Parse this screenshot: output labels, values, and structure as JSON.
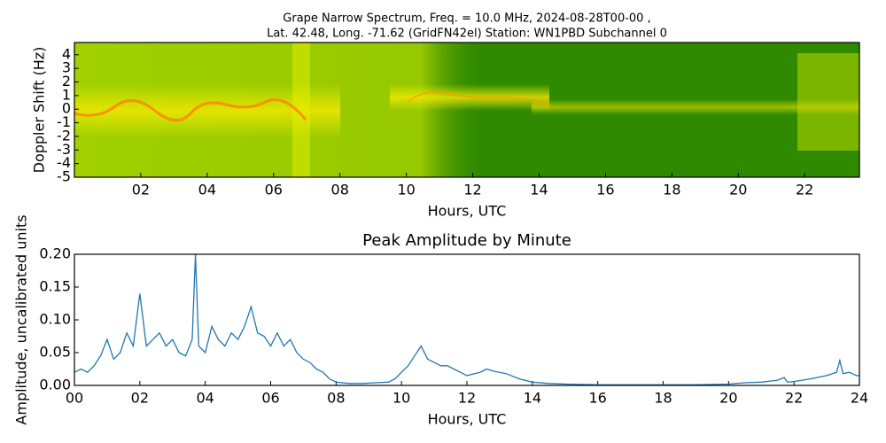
{
  "chart_data": [
    {
      "type": "spectrogram",
      "title": [
        "Grape Narrow Spectrum, Freq. = 10.0 MHz, 2024-08-28T00-00 ,",
        "Lat.  42.48, Long. -71.62 (GridFN42el) Station: WN1PBD Subchannel 0"
      ],
      "x_label": "Hours, UTC",
      "y_label": "Doppler Shift (Hz)",
      "xlim": [
        0,
        23.65
      ],
      "ylim": [
        -5,
        4.9
      ],
      "xticks": [
        {
          "value": 2,
          "label": "02"
        },
        {
          "value": 4,
          "label": "04"
        },
        {
          "value": 6,
          "label": "06"
        },
        {
          "value": 8,
          "label": "08"
        },
        {
          "value": 10,
          "label": "10"
        },
        {
          "value": 12,
          "label": "12"
        },
        {
          "value": 14,
          "label": "14"
        },
        {
          "value": 16,
          "label": "16"
        },
        {
          "value": 18,
          "label": "18"
        },
        {
          "value": 20,
          "label": "20"
        },
        {
          "value": 22,
          "label": "22"
        }
      ],
      "yticks": [
        4,
        3,
        2,
        1,
        0,
        -1,
        -2,
        -3,
        -4,
        -5
      ]
    },
    {
      "type": "line",
      "title": "Peak Amplitude by Minute",
      "x_label": "Hours, UTC",
      "y_label": "Amplitude, uncalibrated units",
      "color": "#1f77b4",
      "xlim": [
        0,
        24
      ],
      "ylim": [
        0,
        0.2
      ],
      "xticks": [
        {
          "value": 0,
          "label": "00"
        },
        {
          "value": 2,
          "label": "02"
        },
        {
          "value": 4,
          "label": "04"
        },
        {
          "value": 6,
          "label": "06"
        },
        {
          "value": 8,
          "label": "08"
        },
        {
          "value": 10,
          "label": "10"
        },
        {
          "value": 12,
          "label": "12"
        },
        {
          "value": 14,
          "label": "14"
        },
        {
          "value": 16,
          "label": "16"
        },
        {
          "value": 18,
          "label": "18"
        },
        {
          "value": 20,
          "label": "20"
        },
        {
          "value": 22,
          "label": "22"
        },
        {
          "value": 24,
          "label": "24"
        }
      ],
      "yticks": [
        {
          "value": 0,
          "label": "0.00"
        },
        {
          "value": 0.05,
          "label": "0.05"
        },
        {
          "value": 0.1,
          "label": "0.10"
        },
        {
          "value": 0.15,
          "label": "0.15"
        },
        {
          "value": 0.2,
          "label": "0.20"
        }
      ],
      "x": [
        0,
        0.2,
        0.4,
        0.6,
        0.8,
        1.0,
        1.2,
        1.4,
        1.6,
        1.8,
        2.0,
        2.2,
        2.4,
        2.6,
        2.8,
        3.0,
        3.2,
        3.4,
        3.6,
        3.7,
        3.8,
        4.0,
        4.2,
        4.4,
        4.6,
        4.8,
        5.0,
        5.2,
        5.4,
        5.6,
        5.8,
        6.0,
        6.2,
        6.4,
        6.6,
        6.8,
        7.0,
        7.2,
        7.4,
        7.6,
        7.8,
        8.0,
        8.4,
        8.8,
        9.2,
        9.6,
        9.8,
        10.0,
        10.2,
        10.4,
        10.6,
        10.8,
        11.0,
        11.2,
        11.4,
        11.6,
        11.8,
        12.0,
        12.4,
        12.6,
        12.8,
        13.2,
        13.6,
        14.0,
        14.5,
        15,
        16,
        17,
        18,
        19,
        20,
        20.5,
        21,
        21.5,
        21.7,
        21.8,
        22,
        22.5,
        23,
        23.3,
        23.4,
        23.5,
        23.7,
        23.9,
        24
      ],
      "values": [
        0.02,
        0.025,
        0.02,
        0.03,
        0.045,
        0.07,
        0.04,
        0.05,
        0.08,
        0.06,
        0.14,
        0.06,
        0.07,
        0.08,
        0.06,
        0.07,
        0.05,
        0.045,
        0.07,
        0.2,
        0.06,
        0.05,
        0.09,
        0.07,
        0.06,
        0.08,
        0.07,
        0.09,
        0.12,
        0.08,
        0.075,
        0.06,
        0.08,
        0.06,
        0.07,
        0.05,
        0.04,
        0.035,
        0.025,
        0.02,
        0.01,
        0.005,
        0.003,
        0.003,
        0.004,
        0.005,
        0.01,
        0.02,
        0.03,
        0.045,
        0.06,
        0.04,
        0.035,
        0.03,
        0.03,
        0.025,
        0.02,
        0.015,
        0.02,
        0.025,
        0.022,
        0.018,
        0.01,
        0.005,
        0.003,
        0.002,
        0.001,
        0.001,
        0.001,
        0.001,
        0.002,
        0.004,
        0.005,
        0.008,
        0.012,
        0.005,
        0.006,
        0.01,
        0.015,
        0.02,
        0.038,
        0.018,
        0.02,
        0.015,
        0.015
      ]
    }
  ]
}
